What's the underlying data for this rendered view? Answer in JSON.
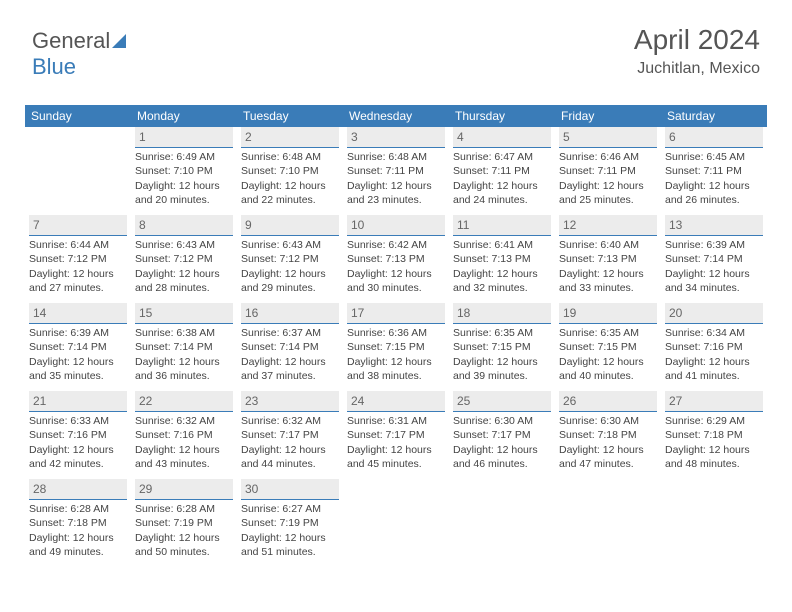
{
  "logo": {
    "text1": "General",
    "text2": "Blue"
  },
  "title": "April 2024",
  "location": "Juchitlan, Mexico",
  "colors": {
    "accent": "#3a7cb8",
    "header_bg": "#3a7cb8",
    "daynum_bg": "#ececec",
    "text": "#444"
  },
  "weekdays": [
    "Sunday",
    "Monday",
    "Tuesday",
    "Wednesday",
    "Thursday",
    "Friday",
    "Saturday"
  ],
  "weeks": [
    [
      {
        "day": "",
        "sunrise": "",
        "sunset": "",
        "daylight1": "",
        "daylight2": ""
      },
      {
        "day": "1",
        "sunrise": "Sunrise: 6:49 AM",
        "sunset": "Sunset: 7:10 PM",
        "daylight1": "Daylight: 12 hours",
        "daylight2": "and 20 minutes."
      },
      {
        "day": "2",
        "sunrise": "Sunrise: 6:48 AM",
        "sunset": "Sunset: 7:10 PM",
        "daylight1": "Daylight: 12 hours",
        "daylight2": "and 22 minutes."
      },
      {
        "day": "3",
        "sunrise": "Sunrise: 6:48 AM",
        "sunset": "Sunset: 7:11 PM",
        "daylight1": "Daylight: 12 hours",
        "daylight2": "and 23 minutes."
      },
      {
        "day": "4",
        "sunrise": "Sunrise: 6:47 AM",
        "sunset": "Sunset: 7:11 PM",
        "daylight1": "Daylight: 12 hours",
        "daylight2": "and 24 minutes."
      },
      {
        "day": "5",
        "sunrise": "Sunrise: 6:46 AM",
        "sunset": "Sunset: 7:11 PM",
        "daylight1": "Daylight: 12 hours",
        "daylight2": "and 25 minutes."
      },
      {
        "day": "6",
        "sunrise": "Sunrise: 6:45 AM",
        "sunset": "Sunset: 7:11 PM",
        "daylight1": "Daylight: 12 hours",
        "daylight2": "and 26 minutes."
      }
    ],
    [
      {
        "day": "7",
        "sunrise": "Sunrise: 6:44 AM",
        "sunset": "Sunset: 7:12 PM",
        "daylight1": "Daylight: 12 hours",
        "daylight2": "and 27 minutes."
      },
      {
        "day": "8",
        "sunrise": "Sunrise: 6:43 AM",
        "sunset": "Sunset: 7:12 PM",
        "daylight1": "Daylight: 12 hours",
        "daylight2": "and 28 minutes."
      },
      {
        "day": "9",
        "sunrise": "Sunrise: 6:43 AM",
        "sunset": "Sunset: 7:12 PM",
        "daylight1": "Daylight: 12 hours",
        "daylight2": "and 29 minutes."
      },
      {
        "day": "10",
        "sunrise": "Sunrise: 6:42 AM",
        "sunset": "Sunset: 7:13 PM",
        "daylight1": "Daylight: 12 hours",
        "daylight2": "and 30 minutes."
      },
      {
        "day": "11",
        "sunrise": "Sunrise: 6:41 AM",
        "sunset": "Sunset: 7:13 PM",
        "daylight1": "Daylight: 12 hours",
        "daylight2": "and 32 minutes."
      },
      {
        "day": "12",
        "sunrise": "Sunrise: 6:40 AM",
        "sunset": "Sunset: 7:13 PM",
        "daylight1": "Daylight: 12 hours",
        "daylight2": "and 33 minutes."
      },
      {
        "day": "13",
        "sunrise": "Sunrise: 6:39 AM",
        "sunset": "Sunset: 7:14 PM",
        "daylight1": "Daylight: 12 hours",
        "daylight2": "and 34 minutes."
      }
    ],
    [
      {
        "day": "14",
        "sunrise": "Sunrise: 6:39 AM",
        "sunset": "Sunset: 7:14 PM",
        "daylight1": "Daylight: 12 hours",
        "daylight2": "and 35 minutes."
      },
      {
        "day": "15",
        "sunrise": "Sunrise: 6:38 AM",
        "sunset": "Sunset: 7:14 PM",
        "daylight1": "Daylight: 12 hours",
        "daylight2": "and 36 minutes."
      },
      {
        "day": "16",
        "sunrise": "Sunrise: 6:37 AM",
        "sunset": "Sunset: 7:14 PM",
        "daylight1": "Daylight: 12 hours",
        "daylight2": "and 37 minutes."
      },
      {
        "day": "17",
        "sunrise": "Sunrise: 6:36 AM",
        "sunset": "Sunset: 7:15 PM",
        "daylight1": "Daylight: 12 hours",
        "daylight2": "and 38 minutes."
      },
      {
        "day": "18",
        "sunrise": "Sunrise: 6:35 AM",
        "sunset": "Sunset: 7:15 PM",
        "daylight1": "Daylight: 12 hours",
        "daylight2": "and 39 minutes."
      },
      {
        "day": "19",
        "sunrise": "Sunrise: 6:35 AM",
        "sunset": "Sunset: 7:15 PM",
        "daylight1": "Daylight: 12 hours",
        "daylight2": "and 40 minutes."
      },
      {
        "day": "20",
        "sunrise": "Sunrise: 6:34 AM",
        "sunset": "Sunset: 7:16 PM",
        "daylight1": "Daylight: 12 hours",
        "daylight2": "and 41 minutes."
      }
    ],
    [
      {
        "day": "21",
        "sunrise": "Sunrise: 6:33 AM",
        "sunset": "Sunset: 7:16 PM",
        "daylight1": "Daylight: 12 hours",
        "daylight2": "and 42 minutes."
      },
      {
        "day": "22",
        "sunrise": "Sunrise: 6:32 AM",
        "sunset": "Sunset: 7:16 PM",
        "daylight1": "Daylight: 12 hours",
        "daylight2": "and 43 minutes."
      },
      {
        "day": "23",
        "sunrise": "Sunrise: 6:32 AM",
        "sunset": "Sunset: 7:17 PM",
        "daylight1": "Daylight: 12 hours",
        "daylight2": "and 44 minutes."
      },
      {
        "day": "24",
        "sunrise": "Sunrise: 6:31 AM",
        "sunset": "Sunset: 7:17 PM",
        "daylight1": "Daylight: 12 hours",
        "daylight2": "and 45 minutes."
      },
      {
        "day": "25",
        "sunrise": "Sunrise: 6:30 AM",
        "sunset": "Sunset: 7:17 PM",
        "daylight1": "Daylight: 12 hours",
        "daylight2": "and 46 minutes."
      },
      {
        "day": "26",
        "sunrise": "Sunrise: 6:30 AM",
        "sunset": "Sunset: 7:18 PM",
        "daylight1": "Daylight: 12 hours",
        "daylight2": "and 47 minutes."
      },
      {
        "day": "27",
        "sunrise": "Sunrise: 6:29 AM",
        "sunset": "Sunset: 7:18 PM",
        "daylight1": "Daylight: 12 hours",
        "daylight2": "and 48 minutes."
      }
    ],
    [
      {
        "day": "28",
        "sunrise": "Sunrise: 6:28 AM",
        "sunset": "Sunset: 7:18 PM",
        "daylight1": "Daylight: 12 hours",
        "daylight2": "and 49 minutes."
      },
      {
        "day": "29",
        "sunrise": "Sunrise: 6:28 AM",
        "sunset": "Sunset: 7:19 PM",
        "daylight1": "Daylight: 12 hours",
        "daylight2": "and 50 minutes."
      },
      {
        "day": "30",
        "sunrise": "Sunrise: 6:27 AM",
        "sunset": "Sunset: 7:19 PM",
        "daylight1": "Daylight: 12 hours",
        "daylight2": "and 51 minutes."
      },
      {
        "day": "",
        "sunrise": "",
        "sunset": "",
        "daylight1": "",
        "daylight2": ""
      },
      {
        "day": "",
        "sunrise": "",
        "sunset": "",
        "daylight1": "",
        "daylight2": ""
      },
      {
        "day": "",
        "sunrise": "",
        "sunset": "",
        "daylight1": "",
        "daylight2": ""
      },
      {
        "day": "",
        "sunrise": "",
        "sunset": "",
        "daylight1": "",
        "daylight2": ""
      }
    ]
  ]
}
